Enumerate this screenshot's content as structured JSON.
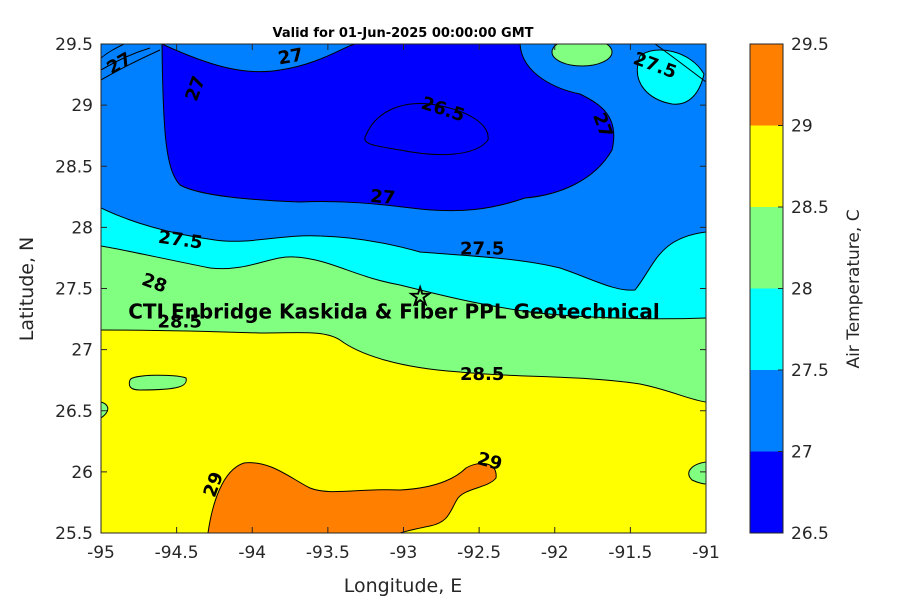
{
  "chart_data": {
    "type": "contour",
    "title": "Valid for 01-Jun-2025 00:00:00 GMT",
    "xlabel": "Longitude, E",
    "ylabel": "Latitude, N",
    "xlim": [
      -95,
      -91
    ],
    "ylim": [
      25.5,
      29.5
    ],
    "x_ticks": [
      "-95",
      "-94.5",
      "-94",
      "-93.5",
      "-93",
      "-92.5",
      "-92",
      "-91.5",
      "-91"
    ],
    "y_ticks": [
      "25.5",
      "26",
      "26.5",
      "27",
      "27.5",
      "28",
      "28.5",
      "29",
      "29.5"
    ],
    "grid": false,
    "colorbar": {
      "label": "Air Temperature, C",
      "ticks": [
        "26.5",
        "27",
        "27.5",
        "28",
        "28.5",
        "29",
        "29.5"
      ],
      "levels": [
        26.5,
        27,
        27.5,
        28,
        28.5,
        29,
        29.5
      ],
      "colors": [
        "#0000ff",
        "#0080ff",
        "#00ffff",
        "#80ff80",
        "#ffff00",
        "#ff8000",
        "#ff0000"
      ]
    },
    "contour_labels": [
      {
        "text": "27",
        "lon": -93.74,
        "lat": 29.35
      },
      {
        "text": "27",
        "lon": -94.34,
        "lat": 29.12
      },
      {
        "text": "26.5",
        "lon": -92.75,
        "lat": 28.92
      },
      {
        "text": "27",
        "lon": -91.72,
        "lat": 28.82
      },
      {
        "text": "27",
        "lon": -93.14,
        "lat": 28.2
      },
      {
        "text": "27.5",
        "lon": -94.48,
        "lat": 27.85
      },
      {
        "text": "27.5",
        "lon": -92.48,
        "lat": 27.78
      },
      {
        "text": "28",
        "lon": -94.66,
        "lat": 27.5
      },
      {
        "text": "28.5",
        "lon": -94.48,
        "lat": 27.18
      },
      {
        "text": "28.5",
        "lon": -92.48,
        "lat": 26.75
      },
      {
        "text": "29",
        "lon": -92.44,
        "lat": 26.04
      },
      {
        "text": "29",
        "lon": -94.22,
        "lat": 25.88
      },
      {
        "text": "27",
        "lon": -94.86,
        "lat": 29.3
      },
      {
        "text": "27.5",
        "lon": -91.35,
        "lat": 29.28
      }
    ],
    "marker": {
      "symbol": "☆",
      "lon": -92.89,
      "lat": 27.44
    },
    "annotation": {
      "text": "CTI Enbridge  Kaskida & Fiber PPL Geotechnical",
      "lon": -94.82,
      "lat": 27.31
    }
  }
}
